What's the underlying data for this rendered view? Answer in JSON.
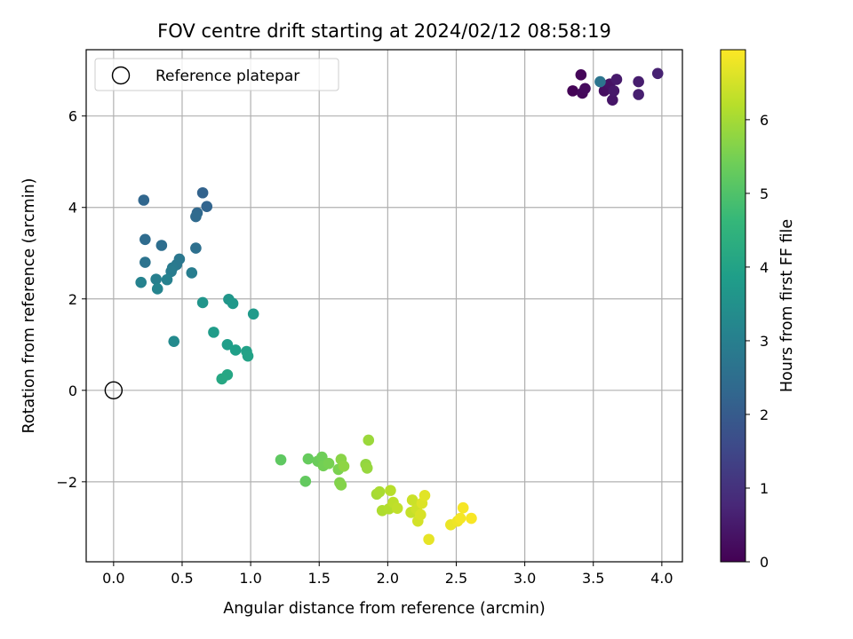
{
  "chart_data": {
    "type": "scatter",
    "title": "FOV centre drift starting at 2024/02/12 08:58:19",
    "xlabel": "Angular distance from reference (arcmin)",
    "ylabel": "Rotation from reference (arcmin)",
    "xlim": [
      -0.2,
      4.15
    ],
    "ylim": [
      -3.75,
      7.45
    ],
    "xticks": [
      0.0,
      0.5,
      1.0,
      1.5,
      2.0,
      2.5,
      3.0,
      3.5,
      4.0
    ],
    "xtick_labels": [
      "0.0",
      "0.5",
      "1.0",
      "1.5",
      "2.0",
      "2.5",
      "3.0",
      "3.5",
      "4.0"
    ],
    "yticks": [
      -2,
      0,
      2,
      4,
      6
    ],
    "ytick_labels": [
      "−2",
      "0",
      "2",
      "4",
      "6"
    ],
    "grid": true,
    "legend": {
      "position": "top-left",
      "entries": [
        "Reference platepar"
      ]
    },
    "reference_point": {
      "x": 0.0,
      "y": 0.0
    },
    "colorbar": {
      "label": "Hours from first FF file",
      "colormap": "viridis",
      "range": [
        0,
        6.95
      ],
      "ticks": [
        0,
        1,
        2,
        3,
        4,
        5,
        6
      ],
      "tick_labels": [
        "0",
        "1",
        "2",
        "3",
        "4",
        "5",
        "6"
      ]
    },
    "colormap_stops": [
      "#440154",
      "#482878",
      "#3e4989",
      "#31688e",
      "#26828e",
      "#1f9e89",
      "#35b779",
      "#6ece58",
      "#b5de2b",
      "#fde725"
    ],
    "points": [
      {
        "x": 3.35,
        "y": 6.55,
        "h": 0.05
      },
      {
        "x": 3.41,
        "y": 6.9,
        "h": 0.1
      },
      {
        "x": 3.42,
        "y": 6.5,
        "h": 0.15
      },
      {
        "x": 3.44,
        "y": 6.6,
        "h": 0.2
      },
      {
        "x": 3.58,
        "y": 6.55,
        "h": 0.25
      },
      {
        "x": 3.6,
        "y": 6.62,
        "h": 0.3
      },
      {
        "x": 3.62,
        "y": 6.7,
        "h": 0.35
      },
      {
        "x": 3.64,
        "y": 6.35,
        "h": 0.4
      },
      {
        "x": 3.65,
        "y": 6.55,
        "h": 0.45
      },
      {
        "x": 3.67,
        "y": 6.8,
        "h": 0.5
      },
      {
        "x": 3.83,
        "y": 6.75,
        "h": 0.55
      },
      {
        "x": 3.83,
        "y": 6.47,
        "h": 0.6
      },
      {
        "x": 3.97,
        "y": 6.93,
        "h": 0.65
      },
      {
        "x": 3.55,
        "y": 6.75,
        "h": 2.7
      },
      {
        "x": 0.65,
        "y": 4.32,
        "h": 2.2
      },
      {
        "x": 0.68,
        "y": 4.02,
        "h": 2.25
      },
      {
        "x": 0.22,
        "y": 4.16,
        "h": 2.3
      },
      {
        "x": 0.61,
        "y": 3.88,
        "h": 2.35
      },
      {
        "x": 0.6,
        "y": 3.8,
        "h": 2.4
      },
      {
        "x": 0.23,
        "y": 3.3,
        "h": 2.45
      },
      {
        "x": 0.35,
        "y": 3.17,
        "h": 2.5
      },
      {
        "x": 0.6,
        "y": 3.11,
        "h": 2.55
      },
      {
        "x": 0.23,
        "y": 2.8,
        "h": 2.65
      },
      {
        "x": 0.48,
        "y": 2.87,
        "h": 2.75
      },
      {
        "x": 0.46,
        "y": 2.75,
        "h": 2.8
      },
      {
        "x": 0.43,
        "y": 2.68,
        "h": 2.85
      },
      {
        "x": 0.42,
        "y": 2.6,
        "h": 2.9
      },
      {
        "x": 0.57,
        "y": 2.57,
        "h": 2.95
      },
      {
        "x": 0.31,
        "y": 2.43,
        "h": 3.0
      },
      {
        "x": 0.39,
        "y": 2.42,
        "h": 3.05
      },
      {
        "x": 0.2,
        "y": 2.36,
        "h": 3.1
      },
      {
        "x": 0.32,
        "y": 2.22,
        "h": 3.15
      },
      {
        "x": 0.44,
        "y": 1.07,
        "h": 3.3
      },
      {
        "x": 0.65,
        "y": 1.92,
        "h": 3.6
      },
      {
        "x": 0.84,
        "y": 1.99,
        "h": 3.65
      },
      {
        "x": 0.87,
        "y": 1.9,
        "h": 3.7
      },
      {
        "x": 1.02,
        "y": 1.67,
        "h": 3.75
      },
      {
        "x": 0.73,
        "y": 1.27,
        "h": 3.8
      },
      {
        "x": 0.83,
        "y": 1.0,
        "h": 3.85
      },
      {
        "x": 0.89,
        "y": 0.88,
        "h": 3.9
      },
      {
        "x": 0.97,
        "y": 0.85,
        "h": 3.95
      },
      {
        "x": 0.98,
        "y": 0.75,
        "h": 4.0
      },
      {
        "x": 0.83,
        "y": 0.34,
        "h": 4.1
      },
      {
        "x": 0.79,
        "y": 0.25,
        "h": 4.15
      },
      {
        "x": 1.22,
        "y": -1.52,
        "h": 5.2
      },
      {
        "x": 1.4,
        "y": -1.99,
        "h": 5.25
      },
      {
        "x": 1.42,
        "y": -1.5,
        "h": 5.3
      },
      {
        "x": 1.49,
        "y": -1.55,
        "h": 5.35
      },
      {
        "x": 1.52,
        "y": -1.46,
        "h": 5.4
      },
      {
        "x": 1.53,
        "y": -1.65,
        "h": 5.45
      },
      {
        "x": 1.57,
        "y": -1.6,
        "h": 5.5
      },
      {
        "x": 1.64,
        "y": -1.73,
        "h": 5.55
      },
      {
        "x": 1.65,
        "y": -2.02,
        "h": 5.6
      },
      {
        "x": 1.66,
        "y": -2.07,
        "h": 5.65
      },
      {
        "x": 1.66,
        "y": -1.51,
        "h": 5.7
      },
      {
        "x": 1.68,
        "y": -1.66,
        "h": 5.75
      },
      {
        "x": 1.84,
        "y": -1.62,
        "h": 5.8
      },
      {
        "x": 1.85,
        "y": -1.7,
        "h": 5.85
      },
      {
        "x": 1.86,
        "y": -1.09,
        "h": 5.9
      },
      {
        "x": 1.92,
        "y": -2.27,
        "h": 6.0
      },
      {
        "x": 1.94,
        "y": -2.22,
        "h": 6.05
      },
      {
        "x": 1.96,
        "y": -2.63,
        "h": 6.1
      },
      {
        "x": 2.01,
        "y": -2.59,
        "h": 6.15
      },
      {
        "x": 2.02,
        "y": -2.19,
        "h": 6.2
      },
      {
        "x": 2.04,
        "y": -2.45,
        "h": 6.25
      },
      {
        "x": 2.07,
        "y": -2.58,
        "h": 6.3
      },
      {
        "x": 2.17,
        "y": -2.67,
        "h": 6.35
      },
      {
        "x": 2.18,
        "y": -2.4,
        "h": 6.4
      },
      {
        "x": 2.21,
        "y": -2.6,
        "h": 6.45
      },
      {
        "x": 2.22,
        "y": -2.86,
        "h": 6.5
      },
      {
        "x": 2.24,
        "y": -2.72,
        "h": 6.55
      },
      {
        "x": 2.25,
        "y": -2.47,
        "h": 6.6
      },
      {
        "x": 2.27,
        "y": -2.3,
        "h": 6.65
      },
      {
        "x": 2.3,
        "y": -3.26,
        "h": 6.7
      },
      {
        "x": 2.46,
        "y": -2.94,
        "h": 6.75
      },
      {
        "x": 2.51,
        "y": -2.86,
        "h": 6.8
      },
      {
        "x": 2.53,
        "y": -2.8,
        "h": 6.85
      },
      {
        "x": 2.55,
        "y": -2.57,
        "h": 6.88
      },
      {
        "x": 2.61,
        "y": -2.8,
        "h": 6.9
      }
    ]
  }
}
